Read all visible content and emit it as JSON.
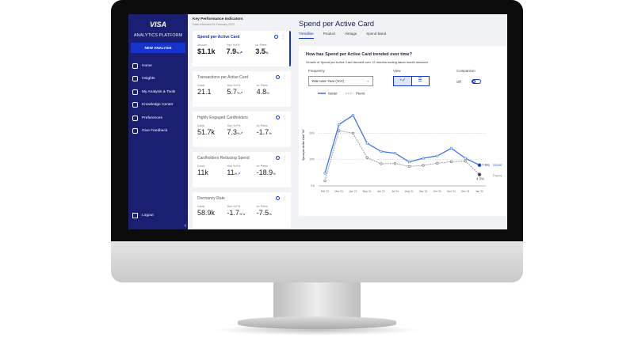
{
  "sidebar": {
    "logo": "VISA",
    "platform": "ANALYTICS PLATFORM",
    "new_analysis": "NEW ANALYSIS",
    "items": [
      {
        "label": "Home",
        "icon": "home-icon"
      },
      {
        "label": "Insights",
        "icon": "chart-icon"
      },
      {
        "label": "My Analysis & Tools",
        "icon": "folder-icon"
      },
      {
        "label": "Knowledge Center",
        "icon": "help-icon"
      },
      {
        "label": "Preferences",
        "icon": "gear-icon"
      },
      {
        "label": "Give Feedback",
        "icon": "feedback-icon"
      }
    ],
    "logout": "Logout",
    "collapse": "‹"
  },
  "kpi": {
    "title": "Key Performance Indicators",
    "subtitle": "Data refreshed 01 February 2022",
    "cards": [
      {
        "title": "Spend per Active Card",
        "l1": "Amount",
        "v1": "$1.1k",
        "l2": "Your YoY%",
        "v2": "7.9",
        "l3": "vs. Peers",
        "v3": "3.5",
        "trend": "up"
      },
      {
        "title": "Transactions per Active Card",
        "l1": "Count",
        "v1": "21.1",
        "l2": "Your YoY%",
        "v2": "5.7",
        "l3": "vs. Peers",
        "v3": "4.8",
        "trend": "up"
      },
      {
        "title": "Highly Engaged Cardholders",
        "l1": "Cards",
        "v1": "51.7k",
        "l2": "Your YoY%",
        "v2": "7.3",
        "l3": "vs. Peers",
        "v3": "-1.7",
        "trend": "up"
      },
      {
        "title": "Cardholders Reducing Spend",
        "l1": "Count",
        "v1": "11k",
        "l2": "Your YoY%",
        "v2": "11",
        "l3": "vs. Peers",
        "v3": "-18.9",
        "trend": "up"
      },
      {
        "title": "Dormancy Rate",
        "l1": "Cards",
        "v1": "58.9k",
        "l2": "Your YoY%",
        "v2": "-1.7",
        "l3": "vs. Peers",
        "v3": "-7.5",
        "trend": "down"
      }
    ],
    "pct": "%"
  },
  "main": {
    "title": "Spend per Active Card",
    "tabs": [
      "Trendline",
      "Product",
      "Vintage",
      "Spend Band"
    ],
    "question": "How has Spend per Active Card trended over time?",
    "subtitle": "Growth of Spend per Active Card trended over 12 months ending latest month selected",
    "frequency_label": "Frequency",
    "frequency_value": "Year-over-Year (YoY)",
    "view_label": "View",
    "comparison_label": "Comparison",
    "comparison_value": "Off"
  },
  "colors": {
    "accent": "#1434cb",
    "sidebar": "#1a1f71",
    "issuer": "#3b73e8",
    "peers": "#888888"
  },
  "chart_data": {
    "type": "line",
    "ylabel": "Spend per Active Card YoY",
    "ylim": [
      0,
      30
    ],
    "grid": true,
    "legend": "top-left",
    "categories": [
      "Feb '21",
      "Mar '21",
      "Apr '21",
      "May '21",
      "Jun '21",
      "Jul '21",
      "Aug '21",
      "Sep '21",
      "Oct '21",
      "Nov '21",
      "Dec '21",
      "Jan '22"
    ],
    "yticks": [
      "0%",
      "10%",
      "20%"
    ],
    "series": [
      {
        "name": "Issuer",
        "values": [
          4.8,
          23.3,
          26.8,
          16.2,
          13.1,
          12.4,
          9.1,
          10.5,
          11.4,
          14.3,
          10.5,
          7.9
        ],
        "end_label": "7.9%"
      },
      {
        "name": "Peers",
        "values": [
          1.9,
          21,
          20,
          10.7,
          8.4,
          8.5,
          7.4,
          7.8,
          8.6,
          9.2,
          9.4,
          4.3
        ],
        "end_label": "4.3%"
      }
    ]
  }
}
